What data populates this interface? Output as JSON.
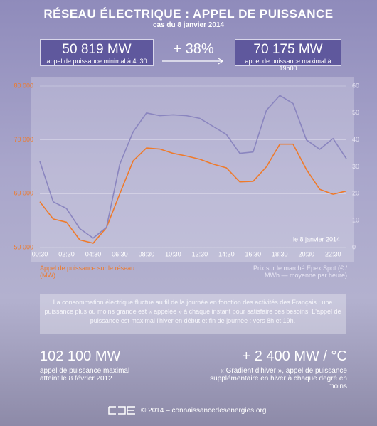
{
  "header": {
    "title": "RÉSEAU ÉLECTRIQUE : APPEL DE PUISSANCE",
    "subtitle": "cas du 8 janvier 2014"
  },
  "highlights": {
    "min": {
      "value": "50 819 MW",
      "label": "appel de puissance minimal à 4h30"
    },
    "change": "+ 38%",
    "max": {
      "value": "70 175 MW",
      "label": "appel de puissance maximal à 19h00"
    }
  },
  "chart_data": {
    "type": "line",
    "categories": [
      "00:30",
      null,
      "02:30",
      null,
      "04:30",
      null,
      "06:30",
      null,
      "08:30",
      null,
      "10:30",
      null,
      "12:30",
      null,
      "14:30",
      null,
      "16:30",
      null,
      "18:30",
      null,
      "20:30",
      null,
      "22:30",
      null
    ],
    "series": [
      {
        "name": "Appel de puissance sur le réseau (MW)",
        "color": "#ef7a2a",
        "values": [
          58500,
          55300,
          54700,
          51400,
          50800,
          53700,
          60000,
          66100,
          68500,
          68300,
          67500,
          67000,
          66400,
          65500,
          64800,
          62200,
          62300,
          65000,
          69200,
          69200,
          64500,
          60800,
          59900,
          60500
        ]
      },
      {
        "name": "Prix sur le marché Epex Spot (€ / MWh — moyenne par heure)",
        "color": "#8a85bf",
        "axis": "y2",
        "values": [
          32,
          17,
          14.5,
          7,
          3.5,
          7.5,
          31,
          43,
          50,
          49,
          49.3,
          49,
          48,
          45,
          42,
          35,
          35.5,
          51,
          56.5,
          53.5,
          40,
          36.5,
          40.5,
          33
        ]
      }
    ],
    "ylim": [
      50000,
      80000
    ],
    "yticks": [
      {
        "value": 50000,
        "label": "50 000"
      },
      {
        "value": 60000,
        "label": "60 000"
      },
      {
        "value": 70000,
        "label": "70 000"
      },
      {
        "value": 80000,
        "label": "80 000"
      }
    ],
    "y2lim": [
      0,
      60
    ],
    "y2ticks": [
      0,
      10,
      20,
      30,
      40,
      50,
      60
    ],
    "grid": true,
    "annotation": "le 8 janvier 2014"
  },
  "note": "La consommation électrique fluctue au fil de la journée en fonction des activités des Français : une puissance plus ou moins grande est « appelée » à chaque instant pour satisfaire ces besoins. L'appel de puissance est maximal l'hiver en début et fin de journée : vers 8h et 19h.",
  "facts": [
    {
      "value": "102 100 MW",
      "label": "appel de puissance maximal atteint le 8 février 2012"
    },
    {
      "value": "+ 2 400 MW / °C",
      "label": "« Gradient d'hiver », appel de puissance supplémentaire en hiver à chaque degré en moins"
    }
  ],
  "footer": "© 2014 – connaissancedesenergies.org"
}
